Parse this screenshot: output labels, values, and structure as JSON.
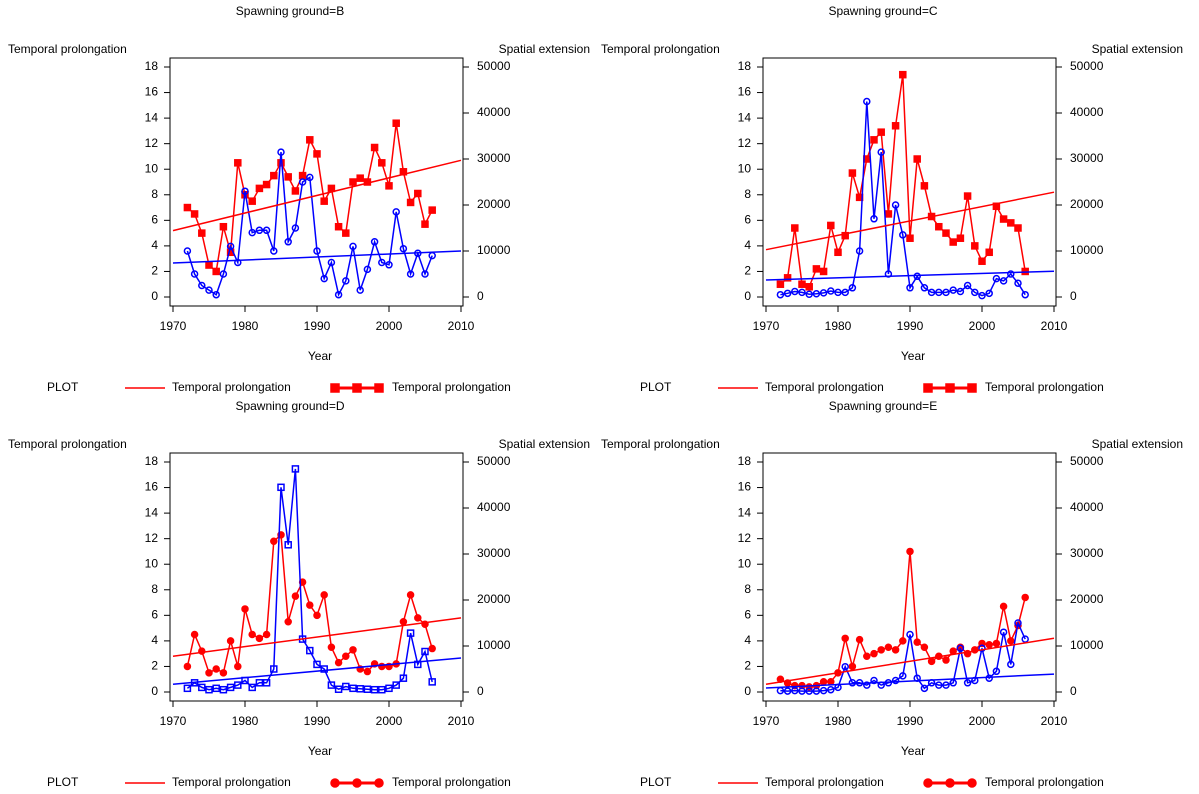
{
  "chart_data": [
    {
      "type": "line",
      "title": "Spawning ground=B",
      "x_label": "Year",
      "y_label": "Temporal prolongation",
      "y2_label": "Spatial extension",
      "x": [
        1972,
        1973,
        1974,
        1975,
        1976,
        1977,
        1978,
        1979,
        1980,
        1981,
        1982,
        1983,
        1984,
        1985,
        1986,
        1987,
        1988,
        1989,
        1990,
        1991,
        1992,
        1993,
        1994,
        1995,
        1996,
        1997,
        1998,
        1999,
        2000,
        2001,
        2002,
        2003,
        2004,
        2005,
        2006
      ],
      "xlim": [
        1970,
        2010
      ],
      "xticks": [
        1970,
        1980,
        1990,
        2000,
        2010
      ],
      "ylim": [
        0,
        18
      ],
      "yticks": [
        0,
        2,
        4,
        6,
        8,
        10,
        12,
        14,
        16,
        18
      ],
      "y2lim": [
        0,
        50000
      ],
      "y2ticks": [
        0,
        10000,
        20000,
        30000,
        40000,
        50000
      ],
      "series": [
        {
          "color": "#ff0000",
          "marker": "square",
          "marker_filled": true,
          "values": [
            7,
            6.5,
            5,
            2.5,
            2,
            5.5,
            3.5,
            10.5,
            8,
            7.5,
            8.5,
            8.8,
            9.5,
            10.5,
            9.4,
            8.3,
            9.5,
            12.3,
            11.2,
            7.5,
            8.5,
            5.5,
            5,
            9,
            9.3,
            9,
            11.7,
            10.5,
            8.7,
            13.6,
            9.8,
            7.4,
            8.1,
            5.7,
            6.8
          ]
        },
        {
          "color": "#0000ff",
          "axis": "y2",
          "marker": "circle",
          "marker_filled": false,
          "values": [
            10000,
            5000,
            2500,
            1500,
            500,
            5000,
            11000,
            7500,
            23000,
            14000,
            14500,
            14500,
            10000,
            31500,
            12000,
            15000,
            25000,
            26000,
            10000,
            4000,
            7500,
            500,
            3500,
            11000,
            1500,
            6000,
            12000,
            7500,
            7000,
            18500,
            10500,
            5000,
            9500,
            5000,
            9000
          ]
        },
        {
          "color": "#ff0000",
          "x": [
            1970,
            2010
          ],
          "values": [
            5.2,
            10.7
          ]
        },
        {
          "color": "#0000ff",
          "axis": "y2",
          "x": [
            1970,
            2010
          ],
          "values": [
            7400,
            10000
          ]
        }
      ],
      "legend": {
        "title": "PLOT",
        "entries": [
          {
            "label": "Temporal prolongation",
            "style": "line",
            "color": "#ff0000"
          },
          {
            "label": "Temporal prolongation",
            "style": "marker",
            "marker": "square",
            "color": "#ff0000"
          }
        ]
      }
    },
    {
      "type": "line",
      "title": "Spawning ground=C",
      "x_label": "Year",
      "y_label": "Temporal prolongation",
      "y2_label": "Spatial extension",
      "x": [
        1972,
        1973,
        1974,
        1975,
        1976,
        1977,
        1978,
        1979,
        1980,
        1981,
        1982,
        1983,
        1984,
        1985,
        1986,
        1987,
        1988,
        1989,
        1990,
        1991,
        1992,
        1993,
        1994,
        1995,
        1996,
        1997,
        1998,
        1999,
        2000,
        2001,
        2002,
        2003,
        2004,
        2005,
        2006
      ],
      "xlim": [
        1970,
        2010
      ],
      "xticks": [
        1970,
        1980,
        1990,
        2000,
        2010
      ],
      "ylim": [
        0,
        18
      ],
      "yticks": [
        0,
        2,
        4,
        6,
        8,
        10,
        12,
        14,
        16,
        18
      ],
      "y2lim": [
        0,
        50000
      ],
      "y2ticks": [
        0,
        10000,
        20000,
        30000,
        40000,
        50000
      ],
      "series": [
        {
          "color": "#ff0000",
          "marker": "square",
          "marker_filled": true,
          "values": [
            1,
            1.5,
            5.4,
            1,
            0.8,
            2.2,
            2,
            5.6,
            3.5,
            4.8,
            9.7,
            7.8,
            10.8,
            12.3,
            12.9,
            6.5,
            13.4,
            17.4,
            4.6,
            10.8,
            8.7,
            6.3,
            5.5,
            5,
            4.3,
            4.6,
            7.9,
            4,
            2.8,
            3.5,
            7.1,
            6.1,
            5.8,
            5.4,
            2
          ]
        },
        {
          "color": "#0000ff",
          "axis": "y2",
          "marker": "circle",
          "marker_filled": false,
          "values": [
            500,
            800,
            1200,
            1000,
            600,
            700,
            900,
            1300,
            1000,
            1000,
            2000,
            10000,
            42500,
            17000,
            31500,
            5000,
            20000,
            13500,
            2000,
            4500,
            2000,
            1000,
            1000,
            1000,
            1500,
            1200,
            2500,
            1000,
            300,
            800,
            4000,
            3500,
            5000,
            3000,
            500
          ]
        },
        {
          "color": "#ff0000",
          "x": [
            1970,
            2010
          ],
          "values": [
            3.7,
            8.2
          ]
        },
        {
          "color": "#0000ff",
          "axis": "y2",
          "x": [
            1970,
            2010
          ],
          "values": [
            3700,
            5600
          ]
        }
      ],
      "legend": {
        "title": "PLOT",
        "entries": [
          {
            "label": "Temporal prolongation",
            "style": "line",
            "color": "#ff0000"
          },
          {
            "label": "Temporal prolongation",
            "style": "marker",
            "marker": "square",
            "color": "#ff0000"
          }
        ]
      }
    },
    {
      "type": "line",
      "title": "Spawning ground=D",
      "x_label": "Year",
      "y_label": "Temporal prolongation",
      "y2_label": "Spatial extension",
      "x": [
        1972,
        1973,
        1974,
        1975,
        1976,
        1977,
        1978,
        1979,
        1980,
        1981,
        1982,
        1983,
        1984,
        1985,
        1986,
        1987,
        1988,
        1989,
        1990,
        1991,
        1992,
        1993,
        1994,
        1995,
        1996,
        1997,
        1998,
        1999,
        2000,
        2001,
        2002,
        2003,
        2004,
        2005,
        2006
      ],
      "xlim": [
        1970,
        2010
      ],
      "xticks": [
        1970,
        1980,
        1990,
        2000,
        2010
      ],
      "ylim": [
        0,
        18
      ],
      "yticks": [
        0,
        2,
        4,
        6,
        8,
        10,
        12,
        14,
        16,
        18
      ],
      "y2lim": [
        0,
        50000
      ],
      "y2ticks": [
        0,
        10000,
        20000,
        30000,
        40000,
        50000
      ],
      "series": [
        {
          "color": "#ff0000",
          "marker": "circle",
          "marker_filled": true,
          "values": [
            2,
            4.5,
            3.2,
            1.5,
            1.8,
            1.5,
            4,
            2,
            6.5,
            4.5,
            4.2,
            4.5,
            11.8,
            12.3,
            5.5,
            7.5,
            8.6,
            6.8,
            6,
            7.6,
            3.5,
            2.3,
            2.8,
            3.3,
            1.8,
            1.6,
            2.2,
            2,
            2,
            2.2,
            5.5,
            7.6,
            5.8,
            5.3,
            3.4
          ]
        },
        {
          "color": "#0000ff",
          "axis": "y2",
          "marker": "square",
          "marker_filled": false,
          "values": [
            800,
            2000,
            1000,
            500,
            800,
            500,
            1000,
            1500,
            2500,
            1000,
            2000,
            2000,
            5000,
            44500,
            32000,
            48500,
            11500,
            9000,
            6000,
            5000,
            1500,
            600,
            1200,
            800,
            700,
            600,
            500,
            500,
            800,
            1500,
            3000,
            12800,
            6000,
            8800,
            2200
          ]
        },
        {
          "color": "#ff0000",
          "x": [
            1970,
            2010
          ],
          "values": [
            2.8,
            5.8
          ]
        },
        {
          "color": "#0000ff",
          "axis": "y2",
          "x": [
            1970,
            2010
          ],
          "values": [
            1700,
            7400
          ]
        }
      ],
      "legend": {
        "title": "PLOT",
        "entries": [
          {
            "label": "Temporal prolongation",
            "style": "line",
            "color": "#ff0000"
          },
          {
            "label": "Temporal prolongation",
            "style": "marker",
            "marker": "circle",
            "color": "#ff0000"
          }
        ]
      }
    },
    {
      "type": "line",
      "title": "Spawning ground=E",
      "x_label": "Year",
      "y_label": "Temporal prolongation",
      "y2_label": "Spatial extension",
      "x": [
        1972,
        1973,
        1974,
        1975,
        1976,
        1977,
        1978,
        1979,
        1980,
        1981,
        1982,
        1983,
        1984,
        1985,
        1986,
        1987,
        1988,
        1989,
        1990,
        1991,
        1992,
        1993,
        1994,
        1995,
        1996,
        1997,
        1998,
        1999,
        2000,
        2001,
        2002,
        2003,
        2004,
        2005,
        2006
      ],
      "xlim": [
        1970,
        2010
      ],
      "xticks": [
        1970,
        1980,
        1990,
        2000,
        2010
      ],
      "ylim": [
        0,
        18
      ],
      "yticks": [
        0,
        2,
        4,
        6,
        8,
        10,
        12,
        14,
        16,
        18
      ],
      "y2lim": [
        0,
        50000
      ],
      "y2ticks": [
        0,
        10000,
        20000,
        30000,
        40000,
        50000
      ],
      "series": [
        {
          "color": "#ff0000",
          "marker": "circle",
          "marker_filled": true,
          "values": [
            1,
            0.7,
            0.5,
            0.5,
            0.4,
            0.5,
            0.8,
            0.8,
            1.5,
            4.2,
            2,
            4.1,
            2.8,
            3,
            3.3,
            3.5,
            3.3,
            4,
            11,
            3.9,
            3.5,
            2.4,
            2.8,
            2.5,
            3.2,
            3.5,
            3,
            3.3,
            3.8,
            3.7,
            3.8,
            6.7,
            4,
            5.2,
            7.4
          ]
        },
        {
          "color": "#0000ff",
          "axis": "y2",
          "marker": "circle",
          "marker_filled": false,
          "values": [
            300,
            200,
            300,
            200,
            200,
            200,
            300,
            500,
            1000,
            5500,
            2000,
            2000,
            1500,
            2500,
            1500,
            2000,
            2500,
            3500,
            12500,
            3000,
            800,
            2000,
            1500,
            1500,
            2000,
            9500,
            2000,
            2500,
            9500,
            3000,
            4500,
            13000,
            6000,
            15000,
            11500
          ]
        },
        {
          "color": "#ff0000",
          "x": [
            1970,
            2010
          ],
          "values": [
            0.6,
            4.2
          ]
        },
        {
          "color": "#0000ff",
          "axis": "y2",
          "x": [
            1970,
            2010
          ],
          "values": [
            870,
            3900
          ]
        }
      ],
      "legend": {
        "title": "PLOT",
        "entries": [
          {
            "label": "Temporal prolongation",
            "style": "line",
            "color": "#ff0000"
          },
          {
            "label": "Temporal prolongation",
            "style": "marker",
            "marker": "circle",
            "color": "#ff0000"
          }
        ]
      }
    }
  ]
}
